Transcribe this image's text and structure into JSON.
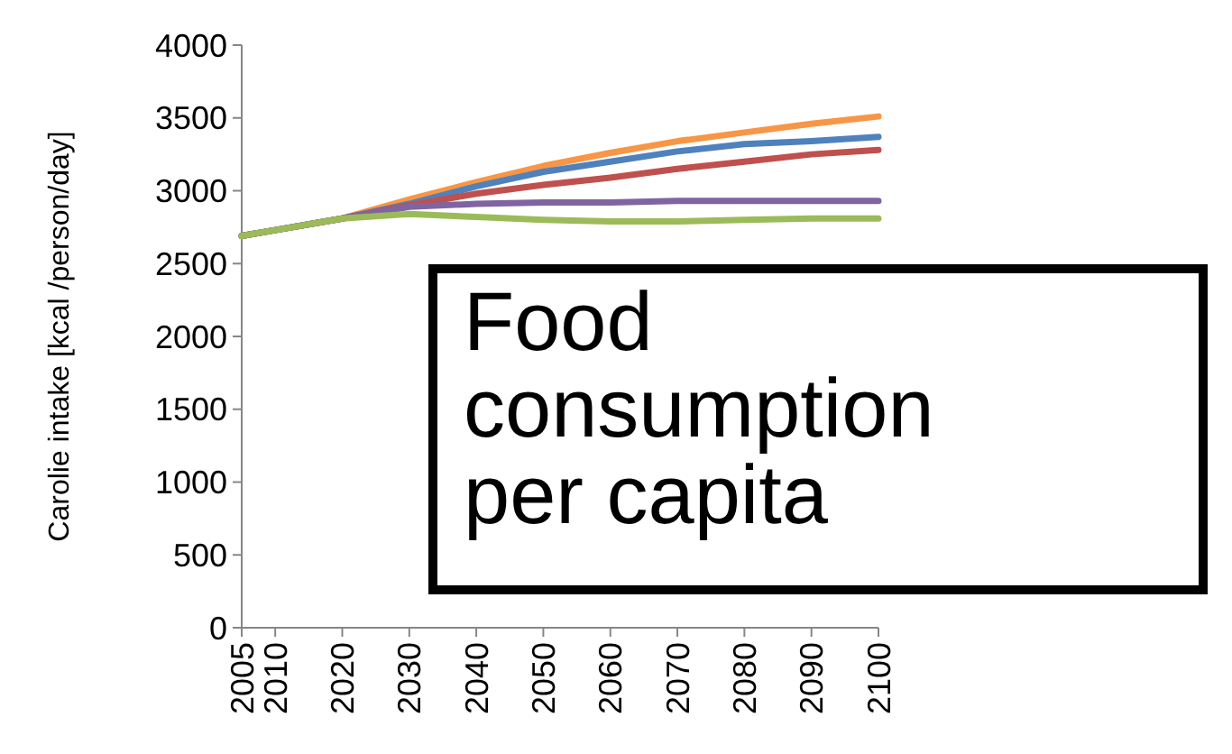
{
  "chart_data": {
    "type": "line",
    "title": "Food consumption per capita",
    "ylabel": "Carolie intake [kcal /person/day]",
    "x": [
      2005,
      2010,
      2020,
      2030,
      2040,
      2050,
      2060,
      2070,
      2080,
      2090,
      2100
    ],
    "xlim": [
      2005,
      2100
    ],
    "xticks": [
      2005,
      2010,
      2020,
      2030,
      2040,
      2050,
      2060,
      2070,
      2080,
      2090,
      2100
    ],
    "ylim": [
      0,
      4000
    ],
    "yticks": [
      0,
      500,
      1000,
      1500,
      2000,
      2500,
      3000,
      3500,
      4000
    ],
    "grid": false,
    "marker": "none",
    "line_style": "solid",
    "series": [
      {
        "color": "#f79646",
        "values": [
          2690,
          2730,
          2810,
          2940,
          3060,
          3170,
          3260,
          3340,
          3400,
          3460,
          3510
        ]
      },
      {
        "color": "#4f81bd",
        "values": [
          2690,
          2730,
          2810,
          2910,
          3030,
          3130,
          3200,
          3270,
          3320,
          3340,
          3370
        ]
      },
      {
        "color": "#c0504d",
        "values": [
          2690,
          2730,
          2810,
          2900,
          2980,
          3040,
          3090,
          3150,
          3200,
          3250,
          3280
        ]
      },
      {
        "color": "#8064a2",
        "values": [
          2690,
          2730,
          2810,
          2890,
          2910,
          2920,
          2920,
          2930,
          2930,
          2930,
          2930
        ]
      },
      {
        "color": "#9bbb59",
        "values": [
          2690,
          2730,
          2810,
          2840,
          2820,
          2800,
          2790,
          2790,
          2800,
          2810,
          2810
        ]
      }
    ]
  }
}
